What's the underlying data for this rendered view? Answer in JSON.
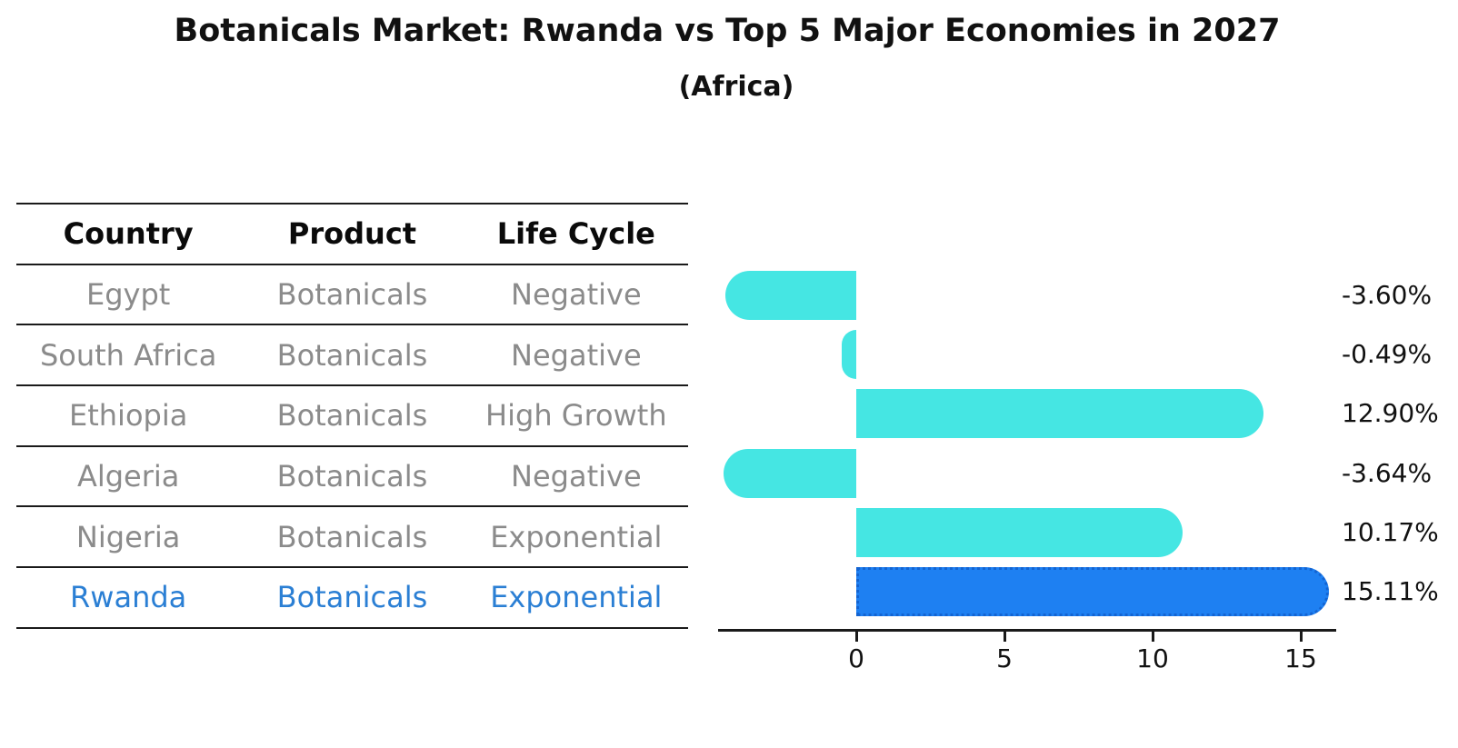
{
  "chart": {
    "title": "Botanicals Market: Rwanda vs Top 5 Major Economies in 2027",
    "subtitle": "(Africa)"
  },
  "table": {
    "columns": [
      "Country",
      "Product",
      "Life Cycle"
    ]
  },
  "chart_data": {
    "type": "bar",
    "orientation": "horizontal",
    "title": "Botanicals Market: Rwanda vs Top 5 Major Economies in 2027",
    "subtitle": "(Africa)",
    "categories": [
      "Egypt",
      "South Africa",
      "Ethiopia",
      "Algeria",
      "Nigeria",
      "Rwanda"
    ],
    "values": [
      -3.6,
      -0.49,
      12.9,
      -3.64,
      10.17,
      15.11
    ],
    "value_labels": [
      "-3.60%",
      "-0.49%",
      "12.90%",
      "-3.64%",
      "10.17%",
      "15.11%"
    ],
    "rows": [
      {
        "country": "Egypt",
        "product": "Botanicals",
        "life_cycle": "Negative",
        "value": -3.6,
        "label": "-3.60%",
        "highlight": false
      },
      {
        "country": "South Africa",
        "product": "Botanicals",
        "life_cycle": "Negative",
        "value": -0.49,
        "label": "-0.49%",
        "highlight": false
      },
      {
        "country": "Ethiopia",
        "product": "Botanicals",
        "life_cycle": "High Growth",
        "value": 12.9,
        "label": "12.90%",
        "highlight": false
      },
      {
        "country": "Algeria",
        "product": "Botanicals",
        "life_cycle": "Negative",
        "value": -3.64,
        "label": "-3.64%",
        "highlight": false
      },
      {
        "country": "Nigeria",
        "product": "Botanicals",
        "life_cycle": "Exponential",
        "value": 10.17,
        "label": "10.17%",
        "highlight": false
      },
      {
        "country": "Rwanda",
        "product": "Botanicals",
        "life_cycle": "Exponential",
        "value": 15.11,
        "label": "15.11%",
        "highlight": true
      }
    ],
    "x_ticks": [
      0,
      5,
      10,
      15
    ],
    "xlim": [
      -4.7,
      16.2
    ],
    "grid": false,
    "legend": false,
    "colors": {
      "bar": "#45e6e3",
      "highlight_bar": "#1e80f2",
      "highlight_border": "#1364d2",
      "table_text": "#8b8b8b",
      "highlight_text": "#2b7fd4",
      "header_text": "#0a0a0a",
      "axis": "#1a1a1a"
    }
  }
}
